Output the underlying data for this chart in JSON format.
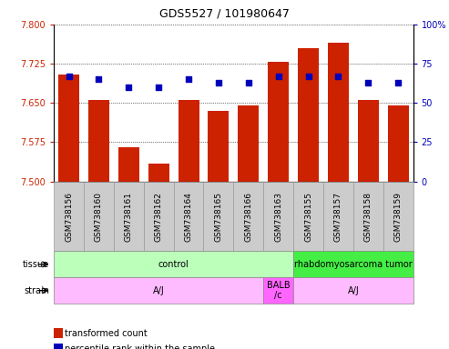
{
  "title": "GDS5527 / 101980647",
  "samples": [
    "GSM738156",
    "GSM738160",
    "GSM738161",
    "GSM738162",
    "GSM738164",
    "GSM738165",
    "GSM738166",
    "GSM738163",
    "GSM738155",
    "GSM738157",
    "GSM738158",
    "GSM738159"
  ],
  "transformed_counts": [
    7.705,
    7.655,
    7.565,
    7.535,
    7.655,
    7.635,
    7.645,
    7.728,
    7.755,
    7.765,
    7.655,
    7.645
  ],
  "percentile_ranks": [
    67,
    65,
    60,
    60,
    65,
    63,
    63,
    67,
    67,
    67,
    63,
    63
  ],
  "ymin": 7.5,
  "ymax": 7.8,
  "y_ticks": [
    7.5,
    7.575,
    7.65,
    7.725,
    7.8
  ],
  "y2min": 0,
  "y2max": 100,
  "y2_ticks": [
    0,
    25,
    50,
    75,
    100
  ],
  "bar_color": "#cc2200",
  "dot_color": "#0000bb",
  "tissue_data": [
    {
      "text": "control",
      "start": 0,
      "end": 7,
      "color": "#bbffbb"
    },
    {
      "text": "rhabdomyosarcoma tumor",
      "start": 8,
      "end": 11,
      "color": "#44ee44"
    }
  ],
  "strain_data": [
    {
      "text": "A/J",
      "start": 0,
      "end": 6,
      "color": "#ffbbff"
    },
    {
      "text": "BALB\n/c",
      "start": 7,
      "end": 7,
      "color": "#ff66ff"
    },
    {
      "text": "A/J",
      "start": 8,
      "end": 11,
      "color": "#ffbbff"
    }
  ],
  "left_label_color": "#555555",
  "tick_bg": "#cccccc",
  "tick_border": "#999999",
  "y_tick_color": "#cc2200",
  "y2_tick_color": "#0000bb",
  "title_fontsize": 9,
  "axis_fontsize": 7,
  "bar_width": 0.7
}
